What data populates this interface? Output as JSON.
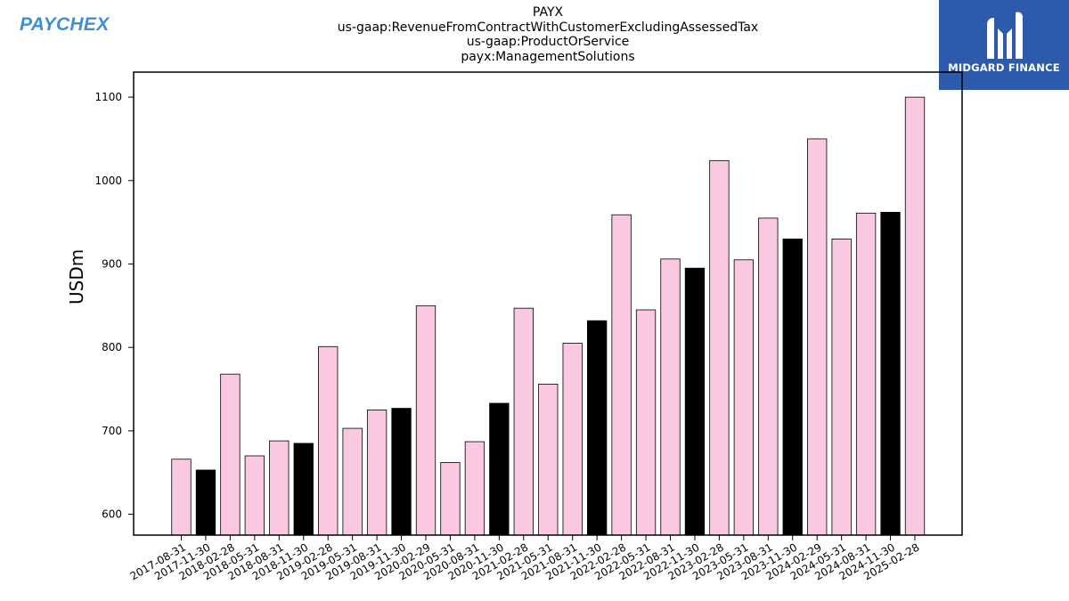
{
  "header": {
    "company_logo_text": "PAYCHEX",
    "brand_logo_text": "MIDGARD FINANCE"
  },
  "colors": {
    "bar_default": "#fbc8e2",
    "bar_highlight": "#000000",
    "company_logo": "#3f8fd6",
    "brand_background": "#2e5aab"
  },
  "chart_data": {
    "type": "bar",
    "title_lines": [
      "PAYX",
      "us-gaap:RevenueFromContractWithCustomerExcludingAssessedTax",
      "us-gaap:ProductOrService",
      "payx:ManagementSolutions"
    ],
    "xlabel": "",
    "ylabel": "USDm",
    "ylim": [
      575,
      1130
    ],
    "yticks": [
      600,
      700,
      800,
      900,
      1000,
      1100
    ],
    "grid": false,
    "categories": [
      "2017-08-31",
      "2017-11-30",
      "2018-02-28",
      "2018-05-31",
      "2018-08-31",
      "2018-11-30",
      "2019-02-28",
      "2019-05-31",
      "2019-08-31",
      "2019-11-30",
      "2020-02-29",
      "2020-05-31",
      "2020-08-31",
      "2020-11-30",
      "2021-02-28",
      "2021-05-31",
      "2021-08-31",
      "2021-11-30",
      "2022-02-28",
      "2022-05-31",
      "2022-08-31",
      "2022-11-30",
      "2023-02-28",
      "2023-05-31",
      "2023-08-31",
      "2023-11-30",
      "2024-02-29",
      "2024-05-31",
      "2024-08-31",
      "2024-11-30",
      "2025-02-28"
    ],
    "values": [
      666,
      653,
      768,
      670,
      688,
      685,
      801,
      703,
      725,
      727,
      850,
      662,
      687,
      733,
      847,
      756,
      805,
      832,
      959,
      845,
      906,
      895,
      1024,
      905,
      955,
      930,
      1050,
      930,
      961,
      962,
      1100
    ],
    "highlighted": [
      1,
      5,
      9,
      13,
      17,
      21,
      25,
      29
    ]
  }
}
